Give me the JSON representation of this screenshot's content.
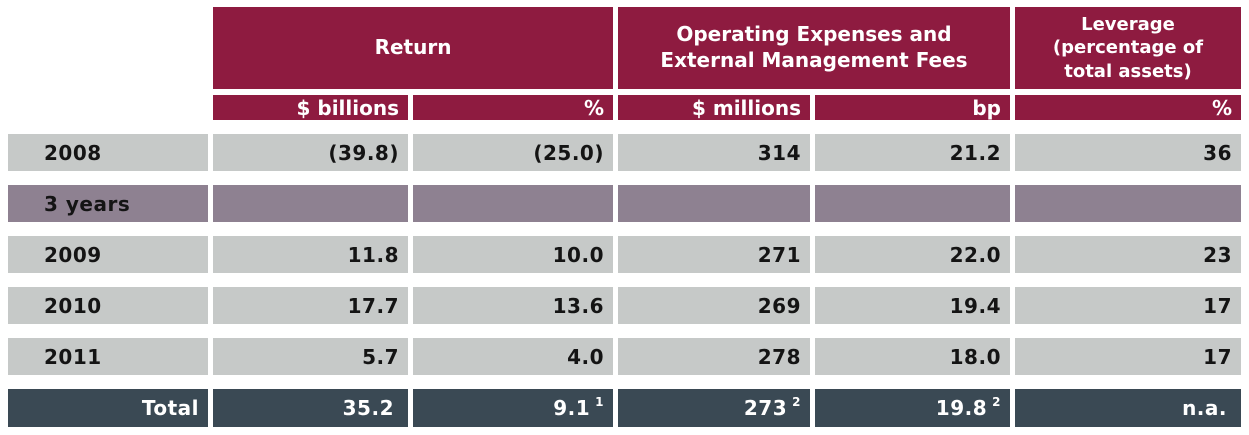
{
  "colors": {
    "maroon": "#8E1B40",
    "row_gray": "#C6C9C8",
    "row_purple": "#8E8191",
    "total_slate": "#3A4954",
    "text_dark": "#141414",
    "text_light": "#FFFFFF",
    "page_bg": "#FFFFFF"
  },
  "header": {
    "return": "Return",
    "opex": "Operating Expenses and\nExternal Management Fees",
    "leverage": "Leverage\n(percentage of\ntotal assets)"
  },
  "subheader": {
    "return_billions": "$ billions",
    "return_pct": "%",
    "opex_millions": "$ millions",
    "opex_bp": "bp",
    "leverage_pct": "%"
  },
  "rows": [
    {
      "label": "2008",
      "type": "data",
      "values": [
        "(39.8)",
        "(25.0)",
        "314",
        "21.2",
        "36"
      ]
    },
    {
      "label": "3 years",
      "type": "section",
      "values": [
        "",
        "",
        "",
        "",
        ""
      ]
    },
    {
      "label": "2009",
      "type": "data",
      "values": [
        "11.8",
        "10.0",
        "271",
        "22.0",
        "23"
      ]
    },
    {
      "label": "2010",
      "type": "data",
      "values": [
        "17.7",
        "13.6",
        "269",
        "19.4",
        "17"
      ]
    },
    {
      "label": "2011",
      "type": "data",
      "values": [
        "5.7",
        "4.0",
        "278",
        "18.0",
        "17"
      ]
    },
    {
      "label": "Total",
      "type": "total",
      "values": [
        "35.2",
        "9.1",
        "273",
        "19.8",
        "n.a."
      ],
      "footnotes": [
        "",
        "1",
        "2",
        "2",
        ""
      ]
    }
  ],
  "chart_data": {
    "type": "table",
    "column_groups": [
      {
        "title": "Return",
        "columns": [
          "$ billions",
          "%"
        ]
      },
      {
        "title": "Operating Expenses and External Management Fees",
        "columns": [
          "$ millions",
          "bp"
        ]
      },
      {
        "title": "Leverage (percentage of total assets)",
        "columns": [
          "%"
        ]
      }
    ],
    "rows": [
      {
        "label": "2008",
        "return_billions": -39.8,
        "return_pct": -25.0,
        "opex_millions": 314,
        "opex_bp": 21.2,
        "leverage_pct": 36
      },
      {
        "label": "3 years",
        "section_header": true
      },
      {
        "label": "2009",
        "return_billions": 11.8,
        "return_pct": 10.0,
        "opex_millions": 271,
        "opex_bp": 22.0,
        "leverage_pct": 23
      },
      {
        "label": "2010",
        "return_billions": 17.7,
        "return_pct": 13.6,
        "opex_millions": 269,
        "opex_bp": 19.4,
        "leverage_pct": 17
      },
      {
        "label": "2011",
        "return_billions": 5.7,
        "return_pct": 4.0,
        "opex_millions": 278,
        "opex_bp": 18.0,
        "leverage_pct": 17
      },
      {
        "label": "Total",
        "return_billions": 35.2,
        "return_pct": 9.1,
        "opex_millions": 273,
        "opex_bp": 19.8,
        "leverage_pct": "n.a.",
        "footnote_markers": {
          "return_pct": "1",
          "opex_millions": "2",
          "opex_bp": "2"
        }
      }
    ],
    "notes": "Values in parentheses are negative; superscript 1 and 2 are footnote markers; 3 years is a section row covering 2009-2011"
  }
}
